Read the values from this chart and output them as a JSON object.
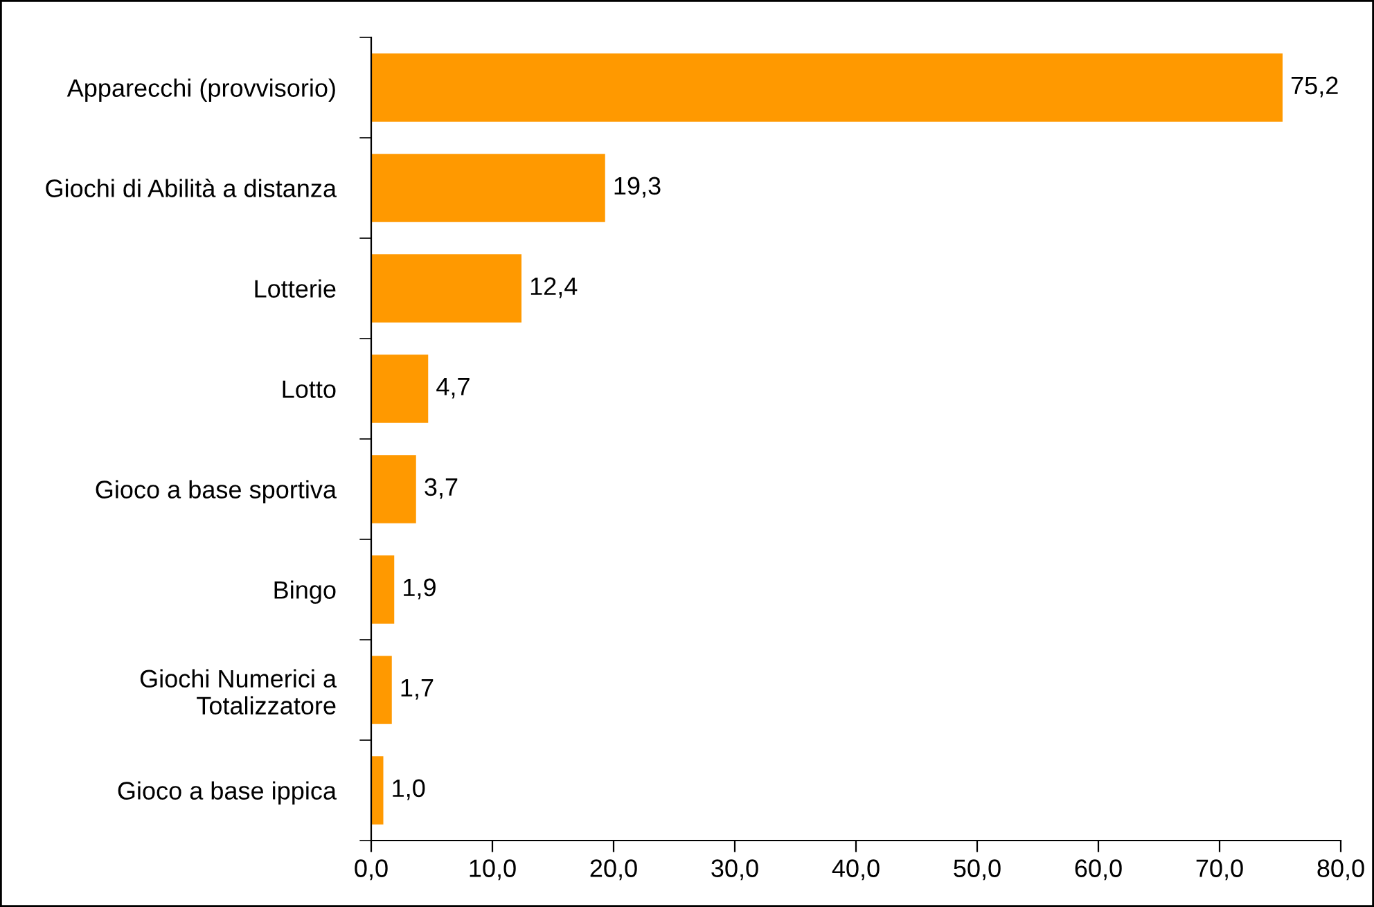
{
  "chart_data": {
    "type": "bar",
    "orientation": "horizontal",
    "categories": [
      "Apparecchi (provvisorio)",
      "Giochi di Abilità a distanza",
      "Lotterie",
      "Lotto",
      "Gioco a base sportiva",
      "Bingo",
      "Giochi Numerici a Totalizzatore",
      "Gioco a base ippica"
    ],
    "values": [
      75.2,
      19.3,
      12.4,
      4.7,
      3.7,
      1.9,
      1.7,
      1.0
    ],
    "value_labels": [
      "75,2",
      "19,3",
      "12,4",
      "4,7",
      "3,7",
      "1,9",
      "1,7",
      "1,0"
    ],
    "color": "#ff9900",
    "xlim": [
      0,
      80
    ],
    "xticks": [
      {
        "value": 0,
        "label": "0,0"
      },
      {
        "value": 10,
        "label": "10,0"
      },
      {
        "value": 20,
        "label": "20,0"
      },
      {
        "value": 30,
        "label": "30,0"
      },
      {
        "value": 40,
        "label": "40,0"
      },
      {
        "value": 50,
        "label": "50,0"
      },
      {
        "value": 60,
        "label": "60,0"
      },
      {
        "value": 70,
        "label": "70,0"
      },
      {
        "value": 80,
        "label": "80,0"
      }
    ],
    "grid": false,
    "legend": false
  }
}
